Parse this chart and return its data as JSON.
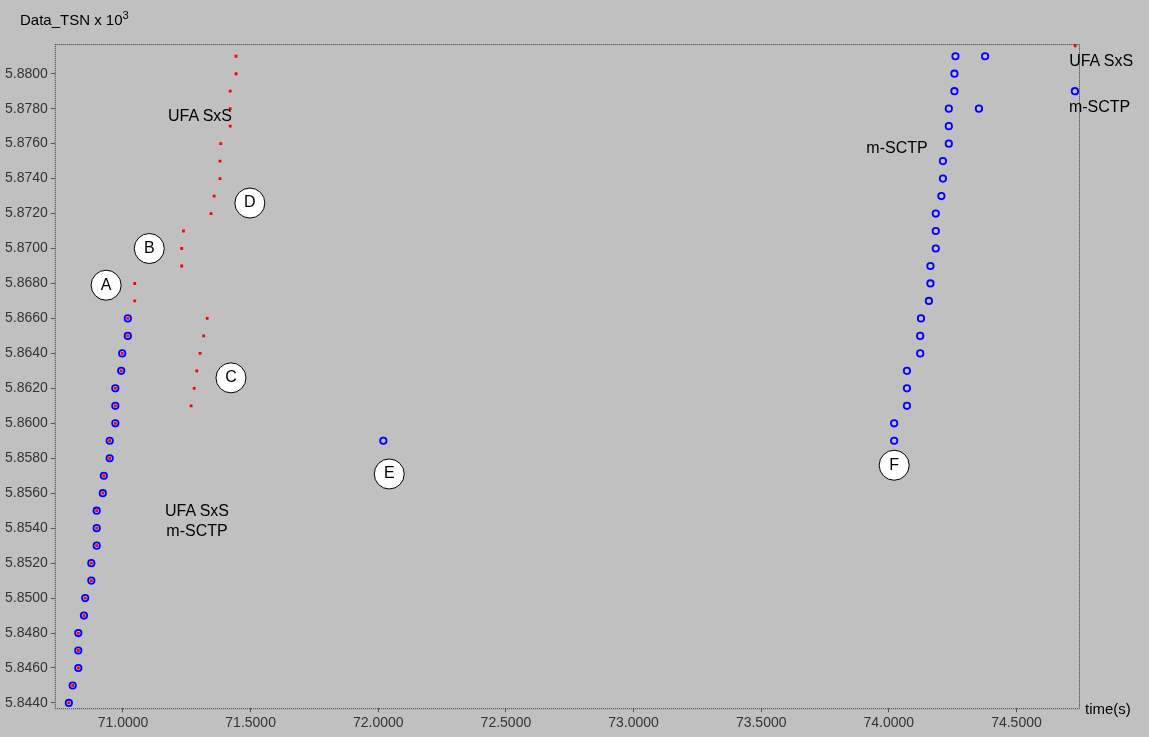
{
  "chart_data": {
    "type": "scatter",
    "ylabel": "Data_TSN x 10$^{3}$",
    "xlabel": "time(s)",
    "xlim": [
      70.733,
      74.745
    ],
    "ylim": [
      5.8437,
      5.8817
    ],
    "xticks": [
      {
        "value": 71,
        "label": "71.0000"
      },
      {
        "value": 71.5,
        "label": "71.5000"
      },
      {
        "value": 72,
        "label": "72.0000"
      },
      {
        "value": 72.5,
        "label": "72.5000"
      },
      {
        "value": 73,
        "label": "73.0000"
      },
      {
        "value": 73.5,
        "label": "73.5000"
      },
      {
        "value": 74,
        "label": "74.0000"
      },
      {
        "value": 74.5,
        "label": "74.5000"
      }
    ],
    "yticks": [
      {
        "value": 5.844,
        "label": "5.8440"
      },
      {
        "value": 5.846,
        "label": "5.8460"
      },
      {
        "value": 5.848,
        "label": "5.8480"
      },
      {
        "value": 5.85,
        "label": "5.8500"
      },
      {
        "value": 5.852,
        "label": "5.8520"
      },
      {
        "value": 5.854,
        "label": "5.8540"
      },
      {
        "value": 5.856,
        "label": "5.8560"
      },
      {
        "value": 5.858,
        "label": "5.8580"
      },
      {
        "value": 5.86,
        "label": "5.8600"
      },
      {
        "value": 5.862,
        "label": "5.8620"
      },
      {
        "value": 5.864,
        "label": "5.8640"
      },
      {
        "value": 5.866,
        "label": "5.8660"
      },
      {
        "value": 5.868,
        "label": "5.8680"
      },
      {
        "value": 5.87,
        "label": "5.8700"
      },
      {
        "value": 5.872,
        "label": "5.8720"
      },
      {
        "value": 5.874,
        "label": "5.8740"
      },
      {
        "value": 5.876,
        "label": "5.8760"
      },
      {
        "value": 5.878,
        "label": "5.8780"
      },
      {
        "value": 5.88,
        "label": "5.8800"
      }
    ],
    "series": [
      {
        "name": "m-SCTP",
        "color": "#0000ff",
        "marker": "circle",
        "x": [
          70.788,
          70.803,
          70.825,
          70.825,
          70.825,
          70.847,
          70.852,
          70.876,
          70.876,
          70.897,
          70.897,
          70.897,
          70.921,
          70.925,
          70.948,
          70.948,
          70.97,
          70.97,
          70.97,
          70.993,
          70.997,
          71.019,
          71.019,
          72.02,
          74.021,
          74.021,
          74.071,
          74.071,
          74.071,
          74.123,
          74.123,
          74.126,
          74.157,
          74.163,
          74.163,
          74.184,
          74.184,
          74.184,
          74.206,
          74.212,
          74.212,
          74.235,
          74.235,
          74.235,
          74.257,
          74.257,
          74.261,
          74.377,
          74.353,
          74.729
        ],
        "values": [
          5.844,
          5.845,
          5.846,
          5.847,
          5.848,
          5.849,
          5.85,
          5.851,
          5.852,
          5.853,
          5.854,
          5.855,
          5.856,
          5.857,
          5.858,
          5.859,
          5.86,
          5.861,
          5.862,
          5.863,
          5.864,
          5.865,
          5.866,
          5.859,
          5.859,
          5.86,
          5.861,
          5.862,
          5.863,
          5.864,
          5.865,
          5.866,
          5.867,
          5.868,
          5.869,
          5.87,
          5.871,
          5.872,
          5.873,
          5.874,
          5.875,
          5.876,
          5.877,
          5.878,
          5.879,
          5.88,
          5.881,
          5.881,
          5.878,
          5.879
        ]
      },
      {
        "name": "UFA SxS",
        "color": "#ff0000",
        "marker": "square",
        "x": [
          70.788,
          70.803,
          70.825,
          70.825,
          70.825,
          70.847,
          70.852,
          70.876,
          70.876,
          70.897,
          70.897,
          70.897,
          70.921,
          70.925,
          70.948,
          70.948,
          70.97,
          70.97,
          70.97,
          70.993,
          70.997,
          71.019,
          71.019,
          71.046,
          71.046,
          71.23,
          71.23,
          71.237,
          71.267,
          71.279,
          71.289,
          71.302,
          71.316,
          71.33,
          71.345,
          71.357,
          71.38,
          71.38,
          71.383,
          71.42,
          71.42,
          71.42,
          71.443,
          71.443,
          74.73
        ],
        "values": [
          5.844,
          5.845,
          5.846,
          5.847,
          5.848,
          5.849,
          5.85,
          5.851,
          5.852,
          5.853,
          5.854,
          5.855,
          5.856,
          5.857,
          5.858,
          5.859,
          5.86,
          5.861,
          5.862,
          5.863,
          5.864,
          5.865,
          5.866,
          5.867,
          5.868,
          5.869,
          5.87,
          5.871,
          5.861,
          5.862,
          5.863,
          5.864,
          5.865,
          5.866,
          5.872,
          5.873,
          5.874,
          5.875,
          5.876,
          5.877,
          5.878,
          5.879,
          5.88,
          5.881,
          5.8816
        ]
      }
    ],
    "annotations": [
      {
        "text": "A",
        "x": 70.934,
        "y": 5.8679
      },
      {
        "text": "B",
        "x": 71.103,
        "y": 5.87
      },
      {
        "text": "C",
        "x": 71.423,
        "y": 5.8626
      },
      {
        "text": "D",
        "x": 71.497,
        "y": 5.8726
      },
      {
        "text": "E",
        "x": 72.043,
        "y": 5.8571
      },
      {
        "text": "F",
        "x": 74.021,
        "y": 5.8576
      },
      "UFA SxS",
      "UFA SxS",
      "m-SCTP",
      "m-SCTP"
    ]
  }
}
